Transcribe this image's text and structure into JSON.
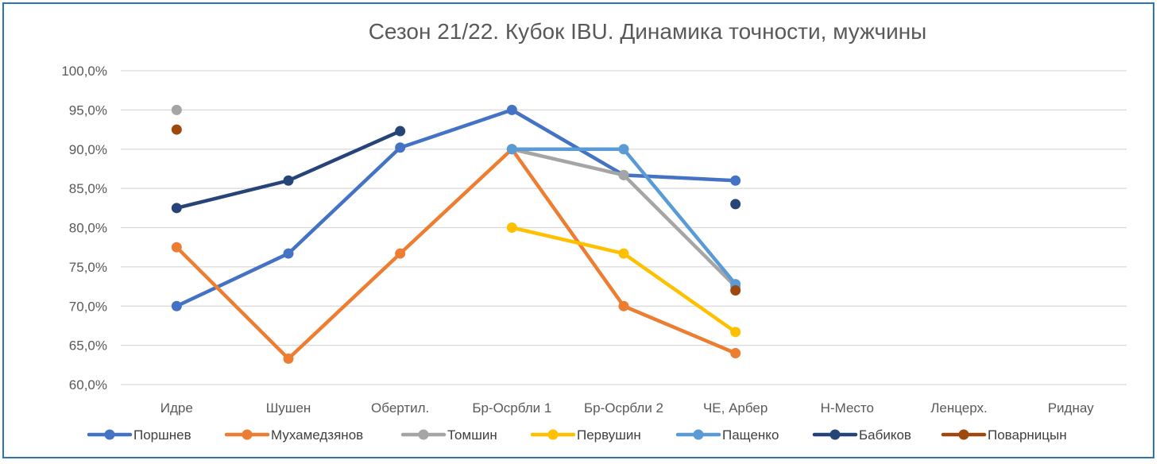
{
  "chart_data": {
    "type": "line",
    "title": "Сезон 21/22. Кубок IBU. Динамика точности, мужчины",
    "categories": [
      "Идре",
      "Шушен",
      "Обертил.",
      "Бр-Осрбли 1",
      "Бр-Осрбли 2",
      "ЧЕ, Арбер",
      "Н-Место",
      "Ленцерх.",
      "Риднау"
    ],
    "ylim": [
      0.6,
      1.0
    ],
    "yticks": [
      {
        "value": 1.0,
        "label": "100,0%"
      },
      {
        "value": 0.95,
        "label": "95,0%"
      },
      {
        "value": 0.9,
        "label": "90,0%"
      },
      {
        "value": 0.85,
        "label": "85,0%"
      },
      {
        "value": 0.8,
        "label": "80,0%"
      },
      {
        "value": 0.75,
        "label": "75,0%"
      },
      {
        "value": 0.7,
        "label": "70,0%"
      },
      {
        "value": 0.65,
        "label": "65,0%"
      },
      {
        "value": 0.6,
        "label": "60,0%"
      }
    ],
    "grid": true,
    "legend_position": "bottom",
    "series": [
      {
        "name": "Поршнев",
        "color": "#4472c4",
        "values": [
          0.7,
          0.767,
          0.902,
          0.95,
          0.867,
          0.86,
          null,
          null,
          null
        ]
      },
      {
        "name": "Мухамедзянов",
        "color": "#ed7d31",
        "values": [
          0.775,
          0.633,
          0.767,
          0.9,
          0.7,
          0.64,
          null,
          null,
          null
        ]
      },
      {
        "name": "Томшин",
        "color": "#a5a5a5",
        "values": [
          0.95,
          null,
          null,
          0.9,
          0.867,
          0.725,
          null,
          null,
          null
        ]
      },
      {
        "name": "Первушин",
        "color": "#ffc000",
        "values": [
          null,
          null,
          null,
          0.8,
          0.767,
          0.667,
          null,
          null,
          null
        ]
      },
      {
        "name": "Пащенко",
        "color": "#5b9bd5",
        "values": [
          null,
          null,
          null,
          0.9,
          0.9,
          0.728,
          null,
          null,
          null
        ]
      },
      {
        "name": "Бабиков",
        "color": "#264478",
        "values": [
          0.825,
          0.86,
          0.923,
          null,
          null,
          0.83,
          null,
          null,
          null
        ]
      },
      {
        "name": "Поварницын",
        "color": "#9e480e",
        "values": [
          0.925,
          null,
          null,
          null,
          null,
          0.72,
          null,
          null,
          null
        ]
      }
    ]
  }
}
